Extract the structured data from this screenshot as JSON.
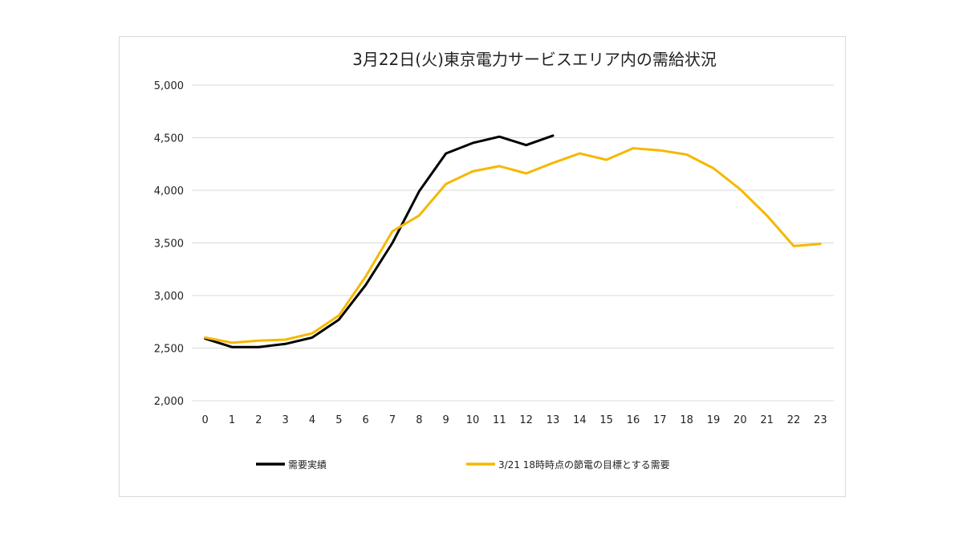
{
  "chart_data": {
    "type": "line",
    "title": "3月22日(火)東京電力サービスエリア内の需給状況",
    "xlabel": "",
    "ylabel": "",
    "categories": [
      "0",
      "1",
      "2",
      "3",
      "4",
      "5",
      "6",
      "7",
      "8",
      "9",
      "10",
      "11",
      "12",
      "13",
      "14",
      "15",
      "16",
      "17",
      "18",
      "19",
      "20",
      "21",
      "22",
      "23"
    ],
    "ylim": [
      2000,
      5000
    ],
    "yticks": [
      2000,
      2500,
      3000,
      3500,
      4000,
      4500,
      5000
    ],
    "ytick_labels": [
      "2,000",
      "2,500",
      "3,000",
      "3,500",
      "4,000",
      "4,500",
      "5,000"
    ],
    "grid": true,
    "legend_position": "bottom",
    "series": [
      {
        "name": "需要実績",
        "color": "#000000",
        "values": [
          2590,
          2510,
          2510,
          2540,
          2600,
          2770,
          3100,
          3500,
          3990,
          4350,
          4450,
          4510,
          4430,
          4520,
          null,
          null,
          null,
          null,
          null,
          null,
          null,
          null,
          null,
          null
        ]
      },
      {
        "name": "3/21 18時時点の節電の目標とする需要",
        "color": "#f5b800",
        "values": [
          2600,
          2550,
          2570,
          2580,
          2640,
          2810,
          3180,
          3610,
          3760,
          4060,
          4180,
          4230,
          4160,
          4260,
          4350,
          4290,
          4400,
          4380,
          4340,
          4210,
          4010,
          3760,
          3470,
          3490
        ]
      }
    ]
  }
}
